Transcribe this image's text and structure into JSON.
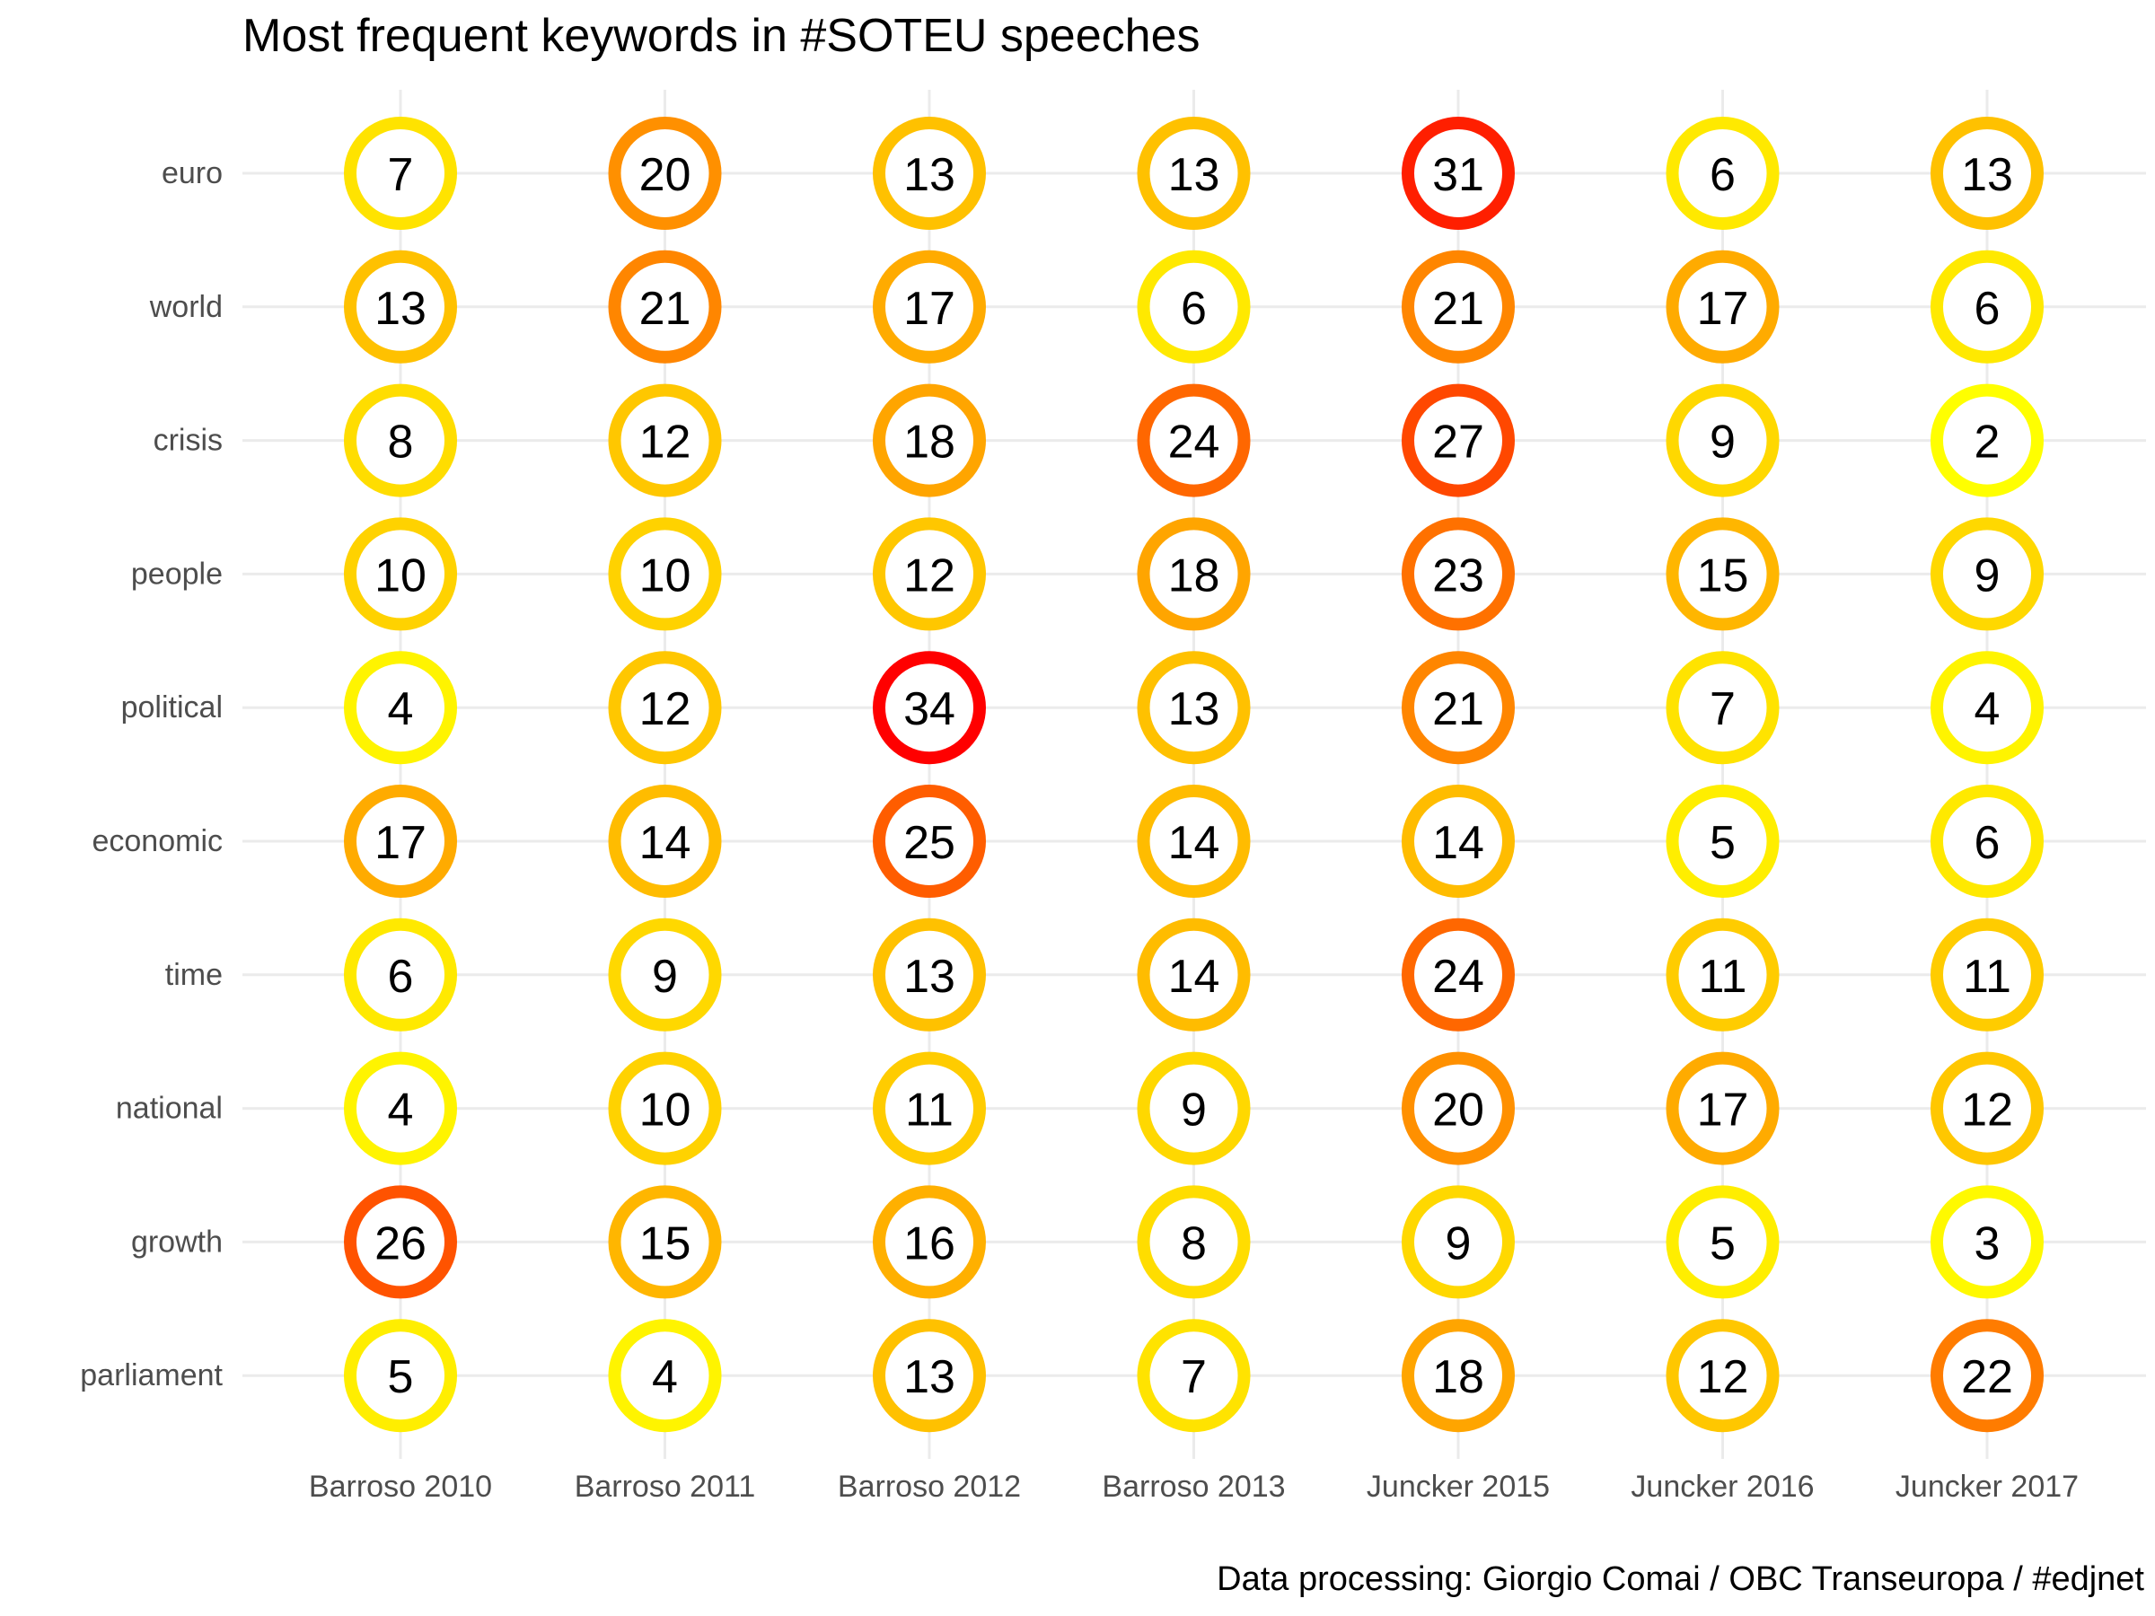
{
  "chart_data": {
    "type": "heatmap",
    "title": "Most frequent keywords in #SOTEU speeches",
    "caption": "Data processing:  Giorgio Comai / OBC Transeuropa / #edjnet",
    "xlabel": "",
    "ylabel": "",
    "grid": true,
    "legend": "none",
    "color_scale": {
      "low": "#FFFF00",
      "mid": "#FFA500",
      "high": "#FF0000",
      "min": 2,
      "max": 34
    },
    "x": [
      "Barroso 2010",
      "Barroso 2011",
      "Barroso 2012",
      "Barroso 2013",
      "Juncker 2015",
      "Juncker 2016",
      "Juncker 2017"
    ],
    "y": [
      "euro",
      "world",
      "crisis",
      "people",
      "political",
      "economic",
      "time",
      "national",
      "growth",
      "parliament"
    ],
    "values": [
      [
        7,
        20,
        13,
        13,
        31,
        6,
        13
      ],
      [
        13,
        21,
        17,
        6,
        21,
        17,
        6
      ],
      [
        8,
        12,
        18,
        24,
        27,
        9,
        2
      ],
      [
        10,
        10,
        12,
        18,
        23,
        15,
        9
      ],
      [
        4,
        12,
        34,
        13,
        21,
        7,
        4
      ],
      [
        17,
        14,
        25,
        14,
        14,
        5,
        6
      ],
      [
        6,
        9,
        13,
        14,
        24,
        11,
        11
      ],
      [
        4,
        10,
        11,
        9,
        20,
        17,
        12
      ],
      [
        26,
        15,
        16,
        8,
        9,
        5,
        3
      ],
      [
        5,
        4,
        13,
        7,
        18,
        12,
        22
      ]
    ]
  }
}
